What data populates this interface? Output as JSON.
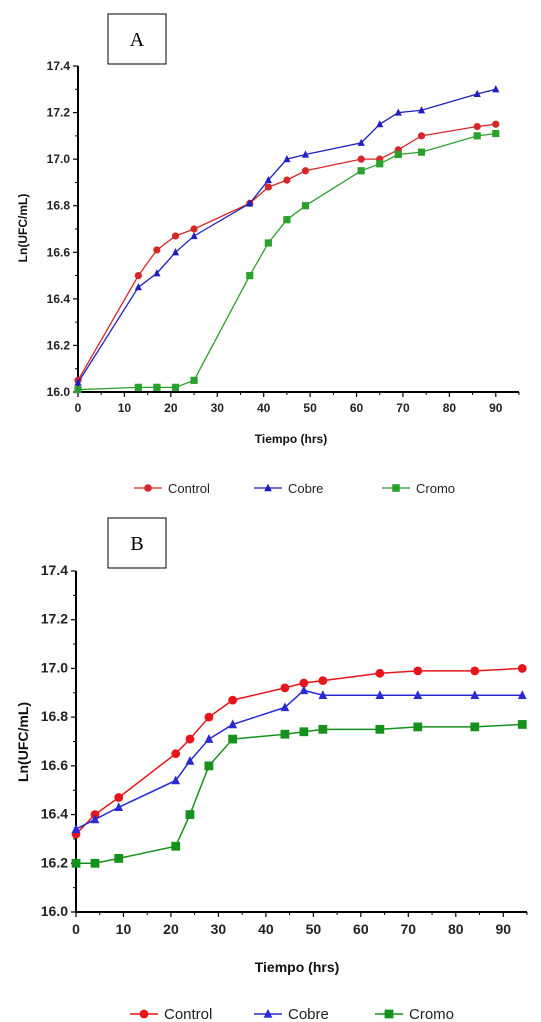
{
  "chart_data": [
    {
      "type": "line",
      "panel_label": "A",
      "xlabel": "Tiempo (hrs)",
      "ylabel": "Ln(UFC/mL)",
      "xlim": [
        0,
        95
      ],
      "ylim": [
        16.0,
        17.4
      ],
      "xticks": [
        "0",
        "10",
        "20",
        "30",
        "40",
        "50",
        "60",
        "70",
        "80",
        "90"
      ],
      "yticks": [
        "16.0",
        "16.2",
        "16.4",
        "16.6",
        "16.8",
        "17.0",
        "17.2",
        "17.4"
      ],
      "legend_position": "bottom",
      "series": [
        {
          "name": "Control",
          "color": "#d62728",
          "marker": "circle",
          "x": [
            0,
            13,
            17,
            21,
            25,
            37,
            41,
            45,
            49,
            61,
            65,
            69,
            74,
            86,
            90
          ],
          "y": [
            16.05,
            16.5,
            16.61,
            16.67,
            16.7,
            16.81,
            16.88,
            16.91,
            16.95,
            17.0,
            17.0,
            17.04,
            17.1,
            17.14,
            17.15
          ]
        },
        {
          "name": "Cobre",
          "color": "#1f1fbf",
          "marker": "triangle",
          "x": [
            0,
            13,
            17,
            21,
            25,
            37,
            41,
            45,
            49,
            61,
            65,
            69,
            74,
            86,
            90
          ],
          "y": [
            16.04,
            16.45,
            16.51,
            16.6,
            16.67,
            16.81,
            16.91,
            17.0,
            17.02,
            17.07,
            17.15,
            17.2,
            17.21,
            17.28,
            17.3
          ]
        },
        {
          "name": "Cromo",
          "color": "#2ca02c",
          "marker": "square",
          "x": [
            0,
            13,
            17,
            21,
            25,
            37,
            41,
            45,
            49,
            61,
            65,
            69,
            74,
            86,
            90
          ],
          "y": [
            16.01,
            16.02,
            16.02,
            16.02,
            16.05,
            16.5,
            16.64,
            16.74,
            16.8,
            16.95,
            16.98,
            17.02,
            17.03,
            17.1,
            17.11
          ]
        }
      ]
    },
    {
      "type": "line",
      "panel_label": "B",
      "xlabel": "Tiempo (hrs)",
      "ylabel": "Ln(UFC/mL)",
      "xlim": [
        0,
        95
      ],
      "ylim": [
        16.0,
        17.4
      ],
      "xticks": [
        "0",
        "10",
        "20",
        "30",
        "40",
        "50",
        "60",
        "70",
        "80",
        "90"
      ],
      "yticks": [
        "16.0",
        "16.2",
        "16.4",
        "16.6",
        "16.8",
        "17.0",
        "17.2",
        "17.4"
      ],
      "legend_position": "bottom",
      "series": [
        {
          "name": "Control",
          "color": "#e8141c",
          "marker": "circle",
          "x": [
            0,
            4,
            9,
            21,
            24,
            28,
            33,
            44,
            48,
            52,
            64,
            72,
            84,
            94
          ],
          "y": [
            16.32,
            16.4,
            16.47,
            16.65,
            16.71,
            16.8,
            16.87,
            16.92,
            16.94,
            16.95,
            16.98,
            16.99,
            16.99,
            17.0
          ]
        },
        {
          "name": "Cobre",
          "color": "#2a2ad6",
          "marker": "triangle",
          "x": [
            0,
            4,
            9,
            21,
            24,
            28,
            33,
            44,
            48,
            52,
            64,
            72,
            84,
            94
          ],
          "y": [
            16.34,
            16.38,
            16.43,
            16.54,
            16.62,
            16.71,
            16.77,
            16.84,
            16.91,
            16.89,
            16.89,
            16.89,
            16.89,
            16.89
          ]
        },
        {
          "name": "Cromo",
          "color": "#17911e",
          "marker": "square",
          "x": [
            0,
            4,
            9,
            21,
            24,
            28,
            33,
            44,
            48,
            52,
            64,
            72,
            84,
            94
          ],
          "y": [
            16.2,
            16.2,
            16.22,
            16.27,
            16.4,
            16.6,
            16.71,
            16.73,
            16.74,
            16.75,
            16.75,
            16.76,
            16.76,
            16.77
          ]
        }
      ]
    }
  ]
}
